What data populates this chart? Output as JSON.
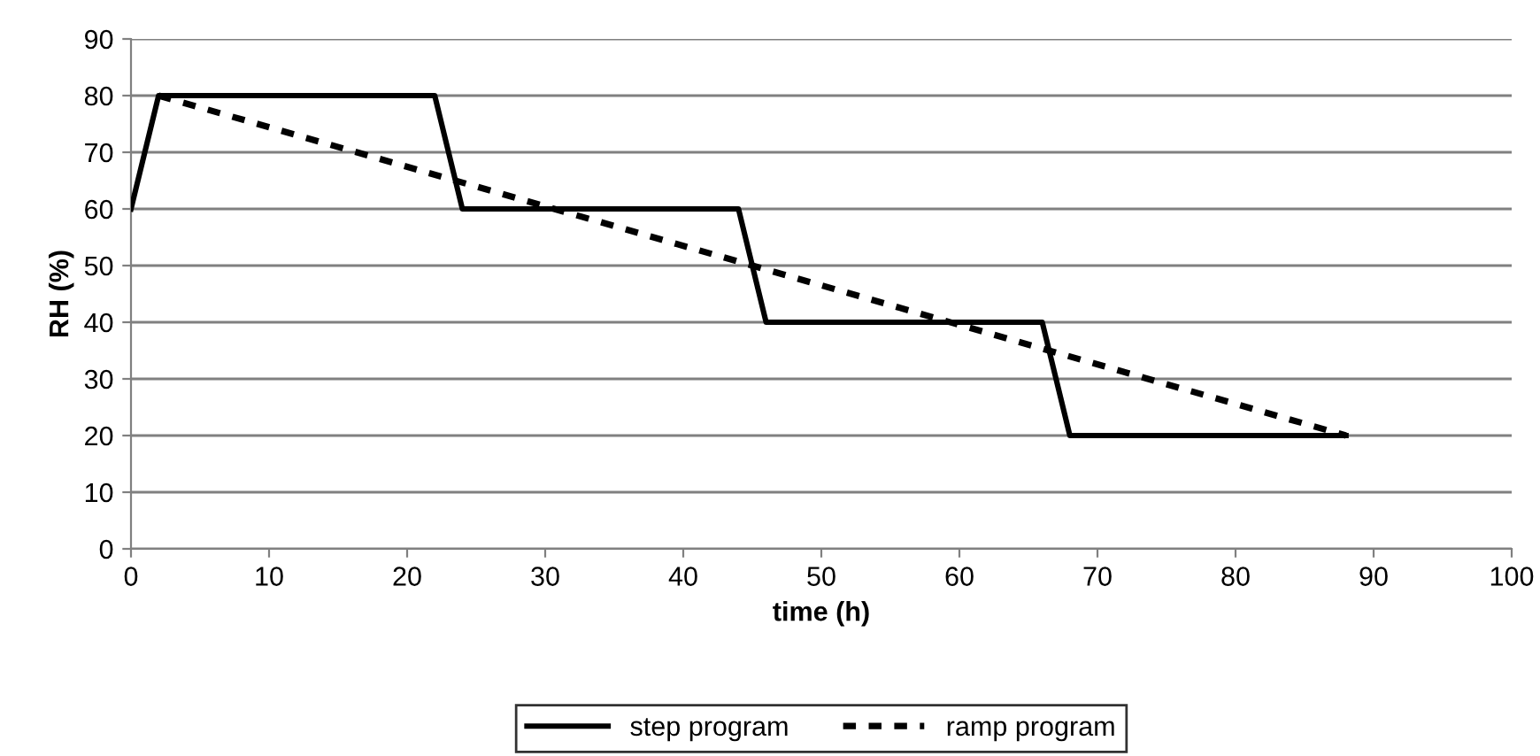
{
  "chart_data": {
    "type": "line",
    "xlabel": "time (h)",
    "ylabel": "RH (%)",
    "xlim": [
      0,
      100
    ],
    "xticks": [
      0,
      10,
      20,
      30,
      40,
      50,
      60,
      70,
      80,
      90,
      100
    ],
    "ylim": [
      0,
      90
    ],
    "yticks": [
      0,
      10,
      20,
      30,
      40,
      50,
      60,
      70,
      80,
      90
    ],
    "grid": "y",
    "legend": "bottom",
    "marker": "none",
    "series": [
      {
        "name": "step program",
        "color": "#000000",
        "line_style": "solid",
        "x": [
          0,
          2,
          22,
          24,
          44,
          46,
          66,
          68,
          88
        ],
        "values": [
          60,
          80,
          80,
          60,
          60,
          40,
          40,
          20,
          20
        ]
      },
      {
        "name": "ramp program",
        "color": "#000000",
        "line_style": "dashed",
        "x": [
          2,
          88
        ],
        "values": [
          80,
          20
        ]
      }
    ]
  }
}
